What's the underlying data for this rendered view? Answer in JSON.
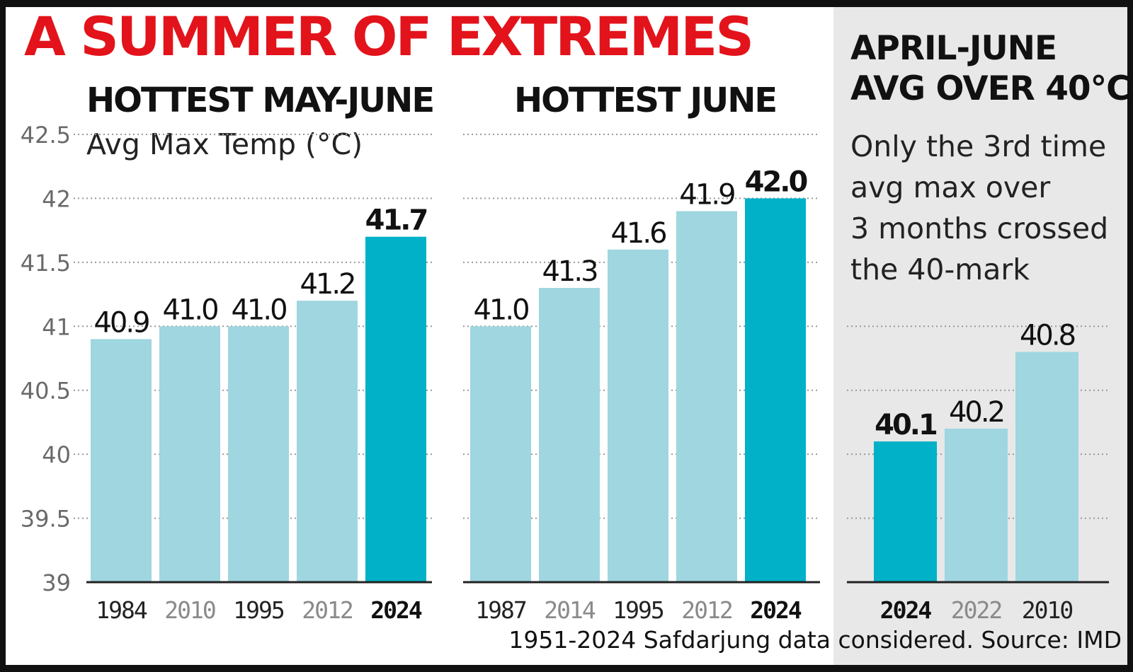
{
  "title": "A SUMMER OF EXTREMES",
  "footer": "1951-2024 Safdarjung data considered. Source: IMD",
  "panel3": {
    "heading_lines": [
      "APRIL-JUNE",
      "AVG OVER 40°C"
    ],
    "note_lines": [
      "Only the 3rd time",
      "avg max over",
      "3 months crossed",
      "the 40-mark"
    ]
  },
  "colors": {
    "title": "#e3131b",
    "bar": "#9fd6e0",
    "bar_highlight": "#00b1c7",
    "grid": "#9a9a9a",
    "side_panel": "#e8e8e8",
    "label_muted": "#8a8a8a",
    "label_dark": "#222222"
  },
  "chart_data": [
    {
      "type": "bar",
      "title": "HOTTEST MAY-JUNE",
      "ylabel": "Avg Max Temp (°C)",
      "ylim": [
        39,
        42.5
      ],
      "yticks": [
        "42.5",
        "42",
        "41.5",
        "41",
        "40.5",
        "40",
        "39.5",
        "39"
      ],
      "categories": [
        "1984",
        "2010",
        "1995",
        "2012",
        "2024"
      ],
      "values": [
        40.9,
        41.0,
        41.0,
        41.2,
        41.7
      ],
      "value_labels": [
        "40.9",
        "41.0",
        "41.0",
        "41.2",
        "41.7"
      ],
      "highlight": "2024",
      "grid": true
    },
    {
      "type": "bar",
      "title": "HOTTEST JUNE",
      "ylim": [
        39,
        42.5
      ],
      "categories": [
        "1987",
        "2014",
        "1995",
        "2012",
        "2024"
      ],
      "values": [
        41.0,
        41.3,
        41.6,
        41.9,
        42.0
      ],
      "value_labels": [
        "41.0",
        "41.3",
        "41.6",
        "41.9",
        "42.0"
      ],
      "highlight": "2024",
      "grid": true
    },
    {
      "type": "bar",
      "ylim": [
        39,
        42.5
      ],
      "categories": [
        "2024",
        "2022",
        "2010"
      ],
      "values": [
        40.1,
        40.2,
        40.8
      ],
      "value_labels": [
        "40.1",
        "40.2",
        "40.8"
      ],
      "highlight": "2024",
      "grid": true
    }
  ]
}
